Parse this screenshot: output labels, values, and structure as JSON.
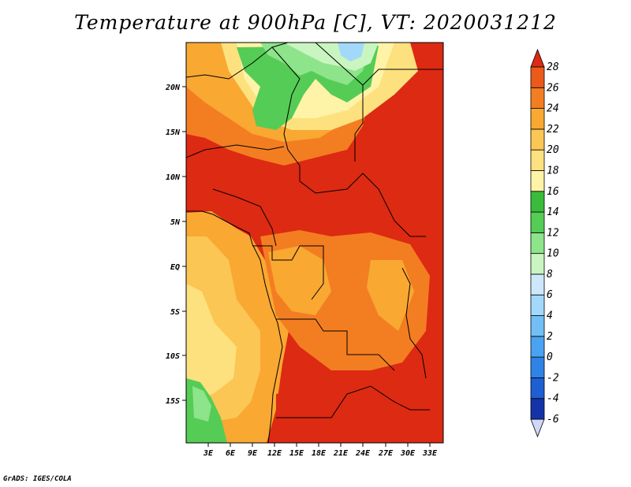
{
  "title": "Temperature at 900hPa [C], VT: 2020031212",
  "credit": "GrADS: IGES/COLA",
  "map": {
    "lat_labels": [
      "20N",
      "15N",
      "10N",
      "5N",
      "EQ",
      "5S",
      "10S",
      "15S"
    ],
    "lon_labels": [
      "3E",
      "6E",
      "9E",
      "12E",
      "15E",
      "18E",
      "21E",
      "24E",
      "27E",
      "30E",
      "33E"
    ]
  },
  "colorbar": {
    "levels": [
      "-6",
      "-4",
      "-2",
      "0",
      "2",
      "4",
      "6",
      "8",
      "10",
      "12",
      "14",
      "16",
      "18",
      "20",
      "22",
      "24",
      "26",
      "28"
    ],
    "colors": [
      "#0a0a6e",
      "#1433a8",
      "#1e5fd2",
      "#2f83e6",
      "#4aa3f0",
      "#73bff5",
      "#a2d8fa",
      "#cde8fb",
      "#c9f5c0",
      "#8ee48a",
      "#55cc55",
      "#3bbb3b",
      "#fff3a8",
      "#fde17f",
      "#fbc654",
      "#f9a832",
      "#f37e22",
      "#ec5a1a",
      "#dd2a12",
      "#d0d8f8"
    ]
  }
}
